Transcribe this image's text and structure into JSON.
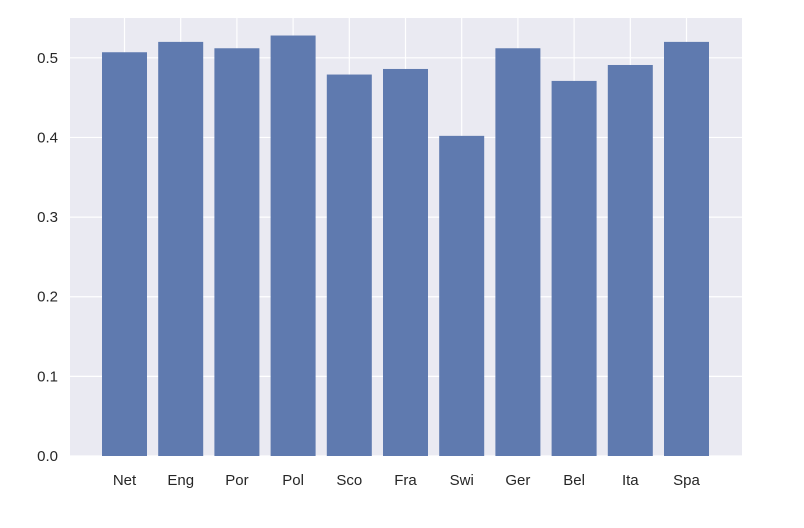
{
  "chart_data": {
    "type": "bar",
    "title": "",
    "xlabel": "",
    "ylabel": "",
    "categories": [
      "Net",
      "Eng",
      "Por",
      "Pol",
      "Sco",
      "Fra",
      "Swi",
      "Ger",
      "Bel",
      "Ita",
      "Spa"
    ],
    "values": [
      0.507,
      0.52,
      0.512,
      0.528,
      0.479,
      0.486,
      0.402,
      0.512,
      0.471,
      0.491,
      0.52
    ],
    "ylim": [
      0,
      0.55
    ],
    "yticks": [
      "0.0",
      "0.1",
      "0.2",
      "0.3",
      "0.4",
      "0.5"
    ],
    "grid": true,
    "legend": "none",
    "colors": {
      "bar": "#5f7aaf",
      "plot_background": "#eaeaf2",
      "grid": "#ffffff",
      "text": "#262626"
    }
  }
}
